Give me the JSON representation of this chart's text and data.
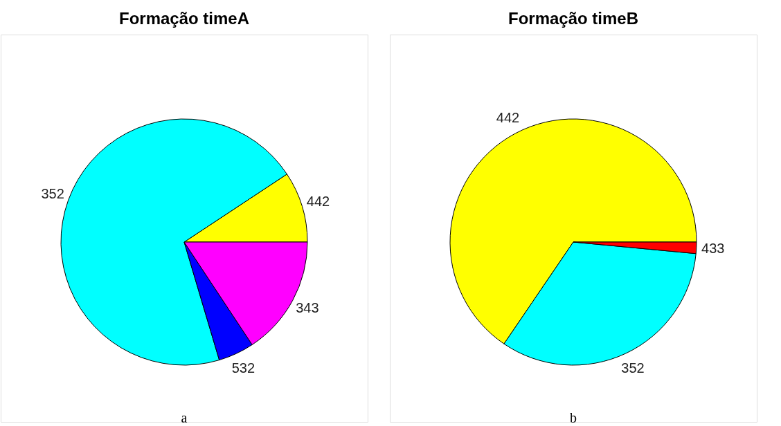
{
  "chart_data": [
    {
      "type": "pie",
      "title": "Formação timeA",
      "categories": [
        "442",
        "352",
        "532",
        "343"
      ],
      "values": [
        9.3,
        70.3,
        4.7,
        15.7
      ],
      "colors": [
        "#ffff00",
        "#00ffff",
        "#0000ff",
        "#ff00ff"
      ],
      "annotations": [
        "a"
      ]
    },
    {
      "type": "pie",
      "title": "Formação timeB",
      "categories": [
        "442",
        "352",
        "433"
      ],
      "values": [
        65.5,
        33.0,
        1.5
      ],
      "colors": [
        "#ffff00",
        "#00ffff",
        "#ff0000"
      ],
      "annotations": [
        "b"
      ]
    }
  ]
}
